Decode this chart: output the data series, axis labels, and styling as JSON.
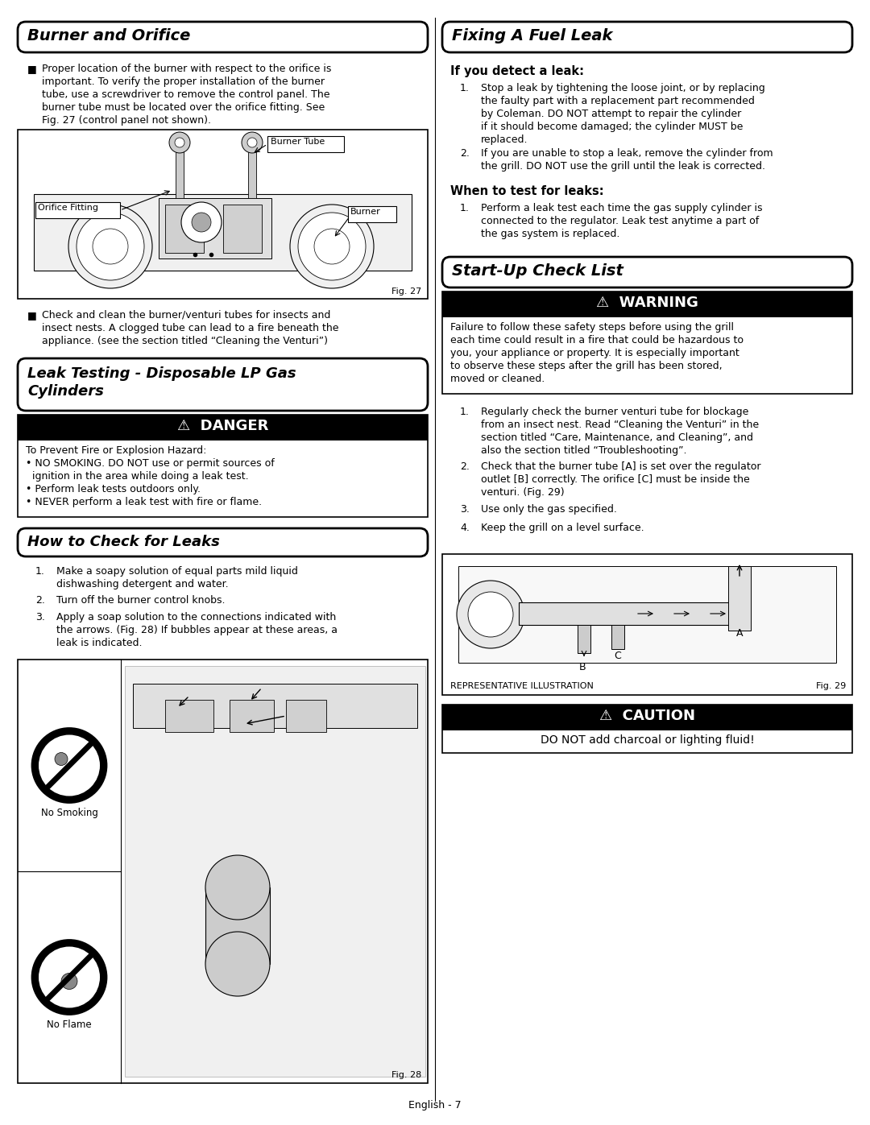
{
  "page_bg": "#ffffff",
  "page_width": 10.8,
  "page_height": 13.97,
  "section1_title": "Burner and Orifice",
  "section1_text1": "Proper location of the burner with respect to the orifice is\nimportant. To verify the proper installation of the burner\ntube, use a screwdriver to remove the control panel. The\nburner tube must be located over the orifice fitting. See\nFig. 27 (control panel not shown).",
  "section1_text2": "Check and clean the burner/venturi tubes for insects and\ninsect nests. A clogged tube can lead to a fire beneath the\nappliance. (see the section titled “Cleaning the Venturi”)",
  "section2_title": "Leak Testing - Disposable LP Gas\nCylinders",
  "danger_text": "To Prevent Fire or Explosion Hazard:\n• NO SMOKING. DO NOT use or permit sources of\n  ignition in the area while doing a leak test.\n• Perform leak tests outdoors only.\n• NEVER perform a leak test with fire or flame.",
  "section3_title": "How to Check for Leaks",
  "section3_items": [
    "Make a soapy solution of equal parts mild liquid\ndishwashing detergent and water.",
    "Turn off the burner control knobs.",
    "Apply a soap solution to the connections indicated with\nthe arrows. (Fig. 28) If bubbles appear at these areas, a\nleak is indicated."
  ],
  "section4_title": "Fixing A Fuel Leak",
  "section4_sub1": "If you detect a leak:",
  "section4_items1": [
    "Stop a leak by tightening the loose joint, or by replacing\nthe faulty part with a replacement part recommended\nby Coleman. DO NOT attempt to repair the cylinder\nif it should become damaged; the cylinder MUST be\nreplaced.",
    "If you are unable to stop a leak, remove the cylinder from\nthe grill. DO NOT use the grill until the leak is corrected."
  ],
  "section4_sub2": "When to test for leaks:",
  "section4_items2": [
    "Perform a leak test each time the gas supply cylinder is\nconnected to the regulator. Leak test anytime a part of\nthe gas system is replaced."
  ],
  "section5_title": "Start-Up Check List",
  "warning_text": "Failure to follow these safety steps before using the grill\neach time could result in a fire that could be hazardous to\nyou, your appliance or property. It is especially important\nto observe these steps after the grill has been stored,\nmoved or cleaned.",
  "section5_items": [
    "Regularly check the burner venturi tube for blockage\nfrom an insect nest. Read “Cleaning the Venturi” in the\nsection titled “Care, Maintenance, and Cleaning”, and\nalso the section titled “Troubleshooting”.",
    "Check that the burner tube [A] is set over the regulator\noutlet [B] correctly. The orifice [C] must be inside the\nventuri. (Fig. 29)",
    "Use only the gas specified.",
    "Keep the grill on a level surface."
  ],
  "caution_text": "DO NOT add charcoal or lighting fluid!",
  "footer_text": "English - 7"
}
